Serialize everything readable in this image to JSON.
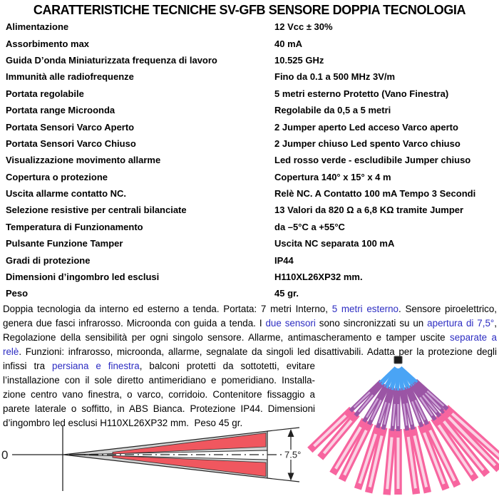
{
  "title": "CARATTERISTICHE TECNICHE SV-GFB SENSORE DOPPIA TECNOLOGIA",
  "specs": [
    {
      "label": "Alimentazione",
      "value": "12 Vcc ± 30%"
    },
    {
      "label": "Assorbimento max",
      "value": "40 mA"
    },
    {
      "label": "Guida D’onda Miniaturizzata frequenza di lavoro",
      "value": "10.525 GHz"
    },
    {
      "label": "Immunità alle radiofrequenze",
      "value": "Fino da 0.1 a 500 MHz 3V/m"
    },
    {
      "label": "Portata regolabile",
      "value": "5 metri esterno Protetto (Vano Finestra)"
    },
    {
      "label": "Portata range Microonda",
      "value": "Regolabile da 0,5 a 5 metri"
    },
    {
      "label": "Portata Sensori Varco Aperto",
      "value": "2 Jumper aperto Led acceso Varco aperto"
    },
    {
      "label": "Portata Sensori Varco Chiuso",
      "value": "2 Jumper chiuso Led spento Varco chiuso"
    },
    {
      "label": "Visualizzazione movimento allarme",
      "value": "Led rosso verde - escludibile Jumper chiuso"
    },
    {
      "label": "Copertura o protezione",
      "value": "Copertura 140° x 15° x 4 m"
    },
    {
      "label": "Uscita allarme contatto NC.",
      "value": "Relè NC. A Contatto 100 mA Tempo 3 Secondi"
    },
    {
      "label": "Selezione resistive per centrali bilanciate",
      "value": "13 Valori da 820 Ω a 6,8 KΩ tramite Jumper"
    },
    {
      "label": "Temperatura di Funzionamento",
      "value": "da –5°C a +55°C"
    },
    {
      "label": "Pulsante Funzione Tamper",
      "value": "Uscita NC separata 100 mA"
    },
    {
      "label": "Gradi di protezione",
      "value": "IP44"
    },
    {
      "label": "Dimensioni d’ingombro led esclusi",
      "value": "H110XL26XP32 mm."
    },
    {
      "label": "Peso",
      "value": "45 gr."
    }
  ],
  "description": {
    "lines": [
      {
        "narrow": false,
        "last": false,
        "segments": [
          {
            "text": "Doppia tecnologia da interno ed esterno a tenda. Portata: 7 metri Interno, ",
            "blue": false
          },
          {
            "text": "5 metri esterno",
            "blue": true
          },
          {
            "text": ". Sensore piroelettrico,",
            "blue": false
          }
        ]
      },
      {
        "narrow": false,
        "last": false,
        "segments": [
          {
            "text": "genera due fasci infrarosso. Microonda con guida a tenda. I ",
            "blue": false
          },
          {
            "text": "due sensori",
            "blue": true
          },
          {
            "text": " sono sincronizzati su un ",
            "blue": false
          },
          {
            "text": "apertura di 7,5°",
            "blue": true
          },
          {
            "text": ",",
            "blue": false
          }
        ]
      },
      {
        "narrow": false,
        "last": false,
        "segments": [
          {
            "text": "Regolazione della sensibilità per ogni singolo sensore. Allarme, antimascheramento e tamper uscite ",
            "blue": false
          },
          {
            "text": "separate a",
            "blue": true
          }
        ]
      },
      {
        "narrow": false,
        "last": false,
        "segments": [
          {
            "text": "relè",
            "blue": true
          },
          {
            "text": ". Funzioni: infrarosso, microonda, allarme, segnalate da singoli led disattivabili. Adatta per la protezione degli",
            "blue": false
          }
        ]
      },
      {
        "narrow": true,
        "last": false,
        "segments": [
          {
            "text": "infissi tra ",
            "blue": false
          },
          {
            "text": "persiana e finestra",
            "blue": true
          },
          {
            "text": ", balconi protetti da sottotetti, evitare",
            "blue": false
          }
        ]
      },
      {
        "narrow": true,
        "last": false,
        "segments": [
          {
            "text": "l’installazione con il sole diretto antimeridiano e pomeridiano. Installa-",
            "blue": false
          }
        ]
      },
      {
        "narrow": true,
        "last": false,
        "segments": [
          {
            "text": "zione centro vano finestra, o varco, corridoio. Contenitore fissaggio a",
            "blue": false
          }
        ]
      },
      {
        "narrow": true,
        "last": false,
        "segments": [
          {
            "text": "parete laterale o soffitto, in ABS Bianca. Protezione IP44. Dimensioni",
            "blue": false
          }
        ]
      },
      {
        "narrow": true,
        "last": true,
        "segments": [
          {
            "text": "d’ingombro led esclusi H110XL26XP32 mm.  Peso 45 gr.",
            "blue": false
          }
        ]
      }
    ]
  },
  "side_diagram": {
    "origin_label": "0",
    "angle_label": "7.5°",
    "colors": {
      "beam": "#f0575f",
      "wedge": "#d2d2d2",
      "outline": "#222222"
    }
  },
  "fan_diagram": {
    "colors": {
      "sensor": "#1b1b1b",
      "near_zone": "#4aa4f5",
      "mid_zone": "#9b55a5",
      "mid_zone_core": "#cfa6d8",
      "far_zone": "#f7659f",
      "far_zone_core": "#fbd3e4"
    },
    "beams": [
      {
        "angle": -46,
        "length": 172
      },
      {
        "angle": -40,
        "length": 170
      },
      {
        "angle": -31,
        "length": 178
      },
      {
        "angle": -26,
        "length": 180
      },
      {
        "angle": -18,
        "length": 183
      },
      {
        "angle": -13,
        "length": 184
      },
      {
        "angle": -5,
        "length": 183
      },
      {
        "angle": 0,
        "length": 182
      },
      {
        "angle": 8,
        "length": 183
      },
      {
        "angle": 13,
        "length": 184
      },
      {
        "angle": 21,
        "length": 187
      },
      {
        "angle": 26,
        "length": 189
      },
      {
        "angle": 34,
        "length": 194
      },
      {
        "angle": 39,
        "length": 198
      },
      {
        "angle": 44,
        "length": 204
      },
      {
        "angle": 48,
        "length": 212
      }
    ]
  },
  "text_colors": {
    "body": "#000000",
    "highlight_blue": "#2d2dc2"
  }
}
